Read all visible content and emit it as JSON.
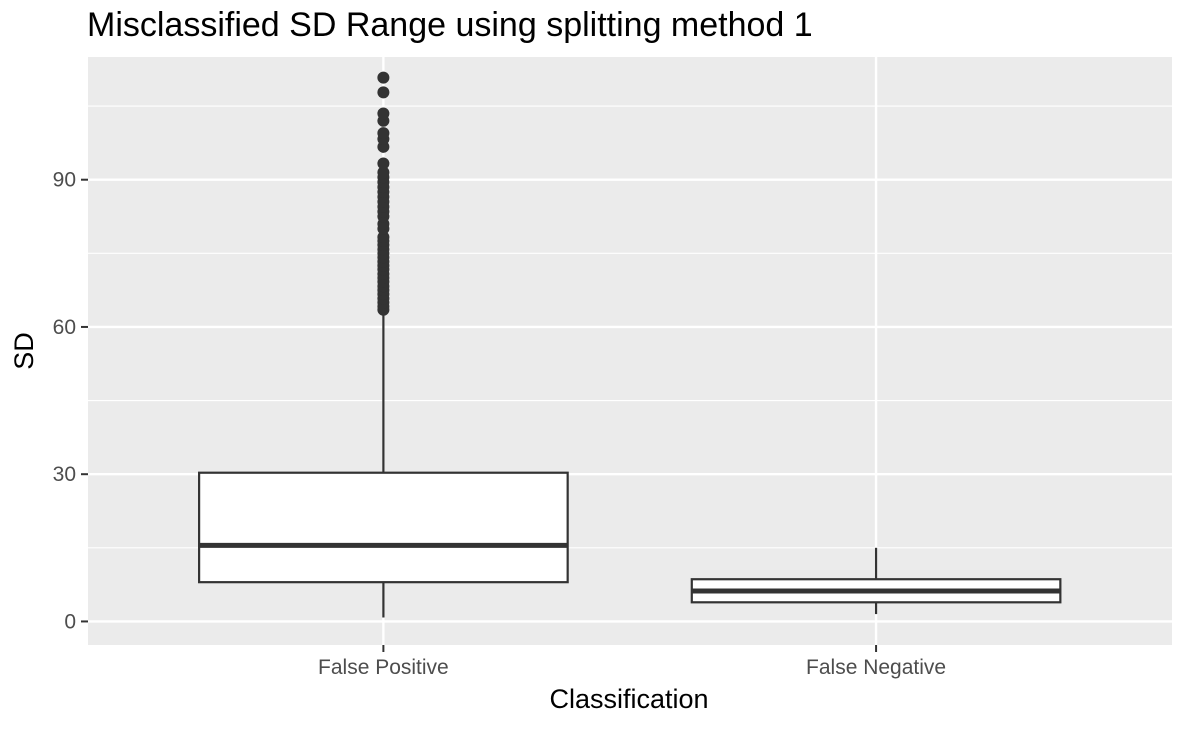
{
  "chart_data": {
    "type": "box",
    "title": "Misclassified SD Range using splitting method 1",
    "xlabel": "Classification",
    "ylabel": "SD",
    "categories": [
      "False Positive",
      "False Negative"
    ],
    "y_ticks": [
      0,
      30,
      60,
      90
    ],
    "ylim": [
      -4.8,
      115
    ],
    "grid": true,
    "colors": {
      "panel_bg": "#ebebeb",
      "grid_line": "#ffffff",
      "box_fill": "#ffffff",
      "box_stroke": "#333333",
      "outlier": "#333333",
      "tick_label": "#4d4d4d"
    },
    "boxes": [
      {
        "category": "False Positive",
        "min": 0.8,
        "q1": 8.0,
        "median": 15.5,
        "q3": 30.3,
        "max": 63.0,
        "outliers": [
          63.5,
          64.2,
          65.0,
          65.8,
          66.7,
          67.5,
          68.3,
          69.2,
          70.0,
          70.8,
          71.7,
          72.5,
          73.3,
          74.2,
          75.0,
          75.8,
          76.7,
          77.5,
          78.3,
          80.0,
          81.0,
          82.5,
          83.5,
          84.5,
          85.5,
          86.5,
          87.5,
          88.5,
          89.5,
          90.5,
          91.5,
          93.3,
          96.7,
          98.3,
          99.5,
          102.0,
          103.5,
          107.8,
          110.8
        ]
      },
      {
        "category": "False Negative",
        "min": 1.5,
        "q1": 3.9,
        "median": 6.2,
        "q3": 8.6,
        "max": 15.0,
        "outliers": []
      }
    ]
  }
}
